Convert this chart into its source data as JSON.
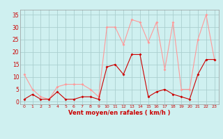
{
  "hours": [
    0,
    1,
    2,
    3,
    4,
    5,
    6,
    7,
    8,
    9,
    10,
    11,
    12,
    13,
    14,
    15,
    16,
    17,
    18,
    19,
    20,
    21,
    22,
    23
  ],
  "wind_mean": [
    1,
    3,
    1,
    1,
    4,
    1,
    1,
    2,
    2,
    1,
    14,
    15,
    11,
    19,
    19,
    2,
    4,
    5,
    3,
    2,
    1,
    11,
    17,
    17
  ],
  "wind_gust": [
    11,
    5,
    2,
    1,
    6,
    7,
    7,
    7,
    5,
    2,
    30,
    30,
    23,
    33,
    32,
    24,
    32,
    13,
    32,
    5,
    5,
    25,
    35,
    17
  ],
  "bg_color": "#cff0f0",
  "grid_color": "#aacfcf",
  "mean_color": "#cc0000",
  "gust_color": "#ff9999",
  "xlabel": "Vent moyen/en rafales ( km/h )",
  "yticks": [
    0,
    5,
    10,
    15,
    20,
    25,
    30,
    35
  ],
  "ylim": [
    -1,
    37
  ],
  "xlim": [
    -0.5,
    23.5
  ]
}
